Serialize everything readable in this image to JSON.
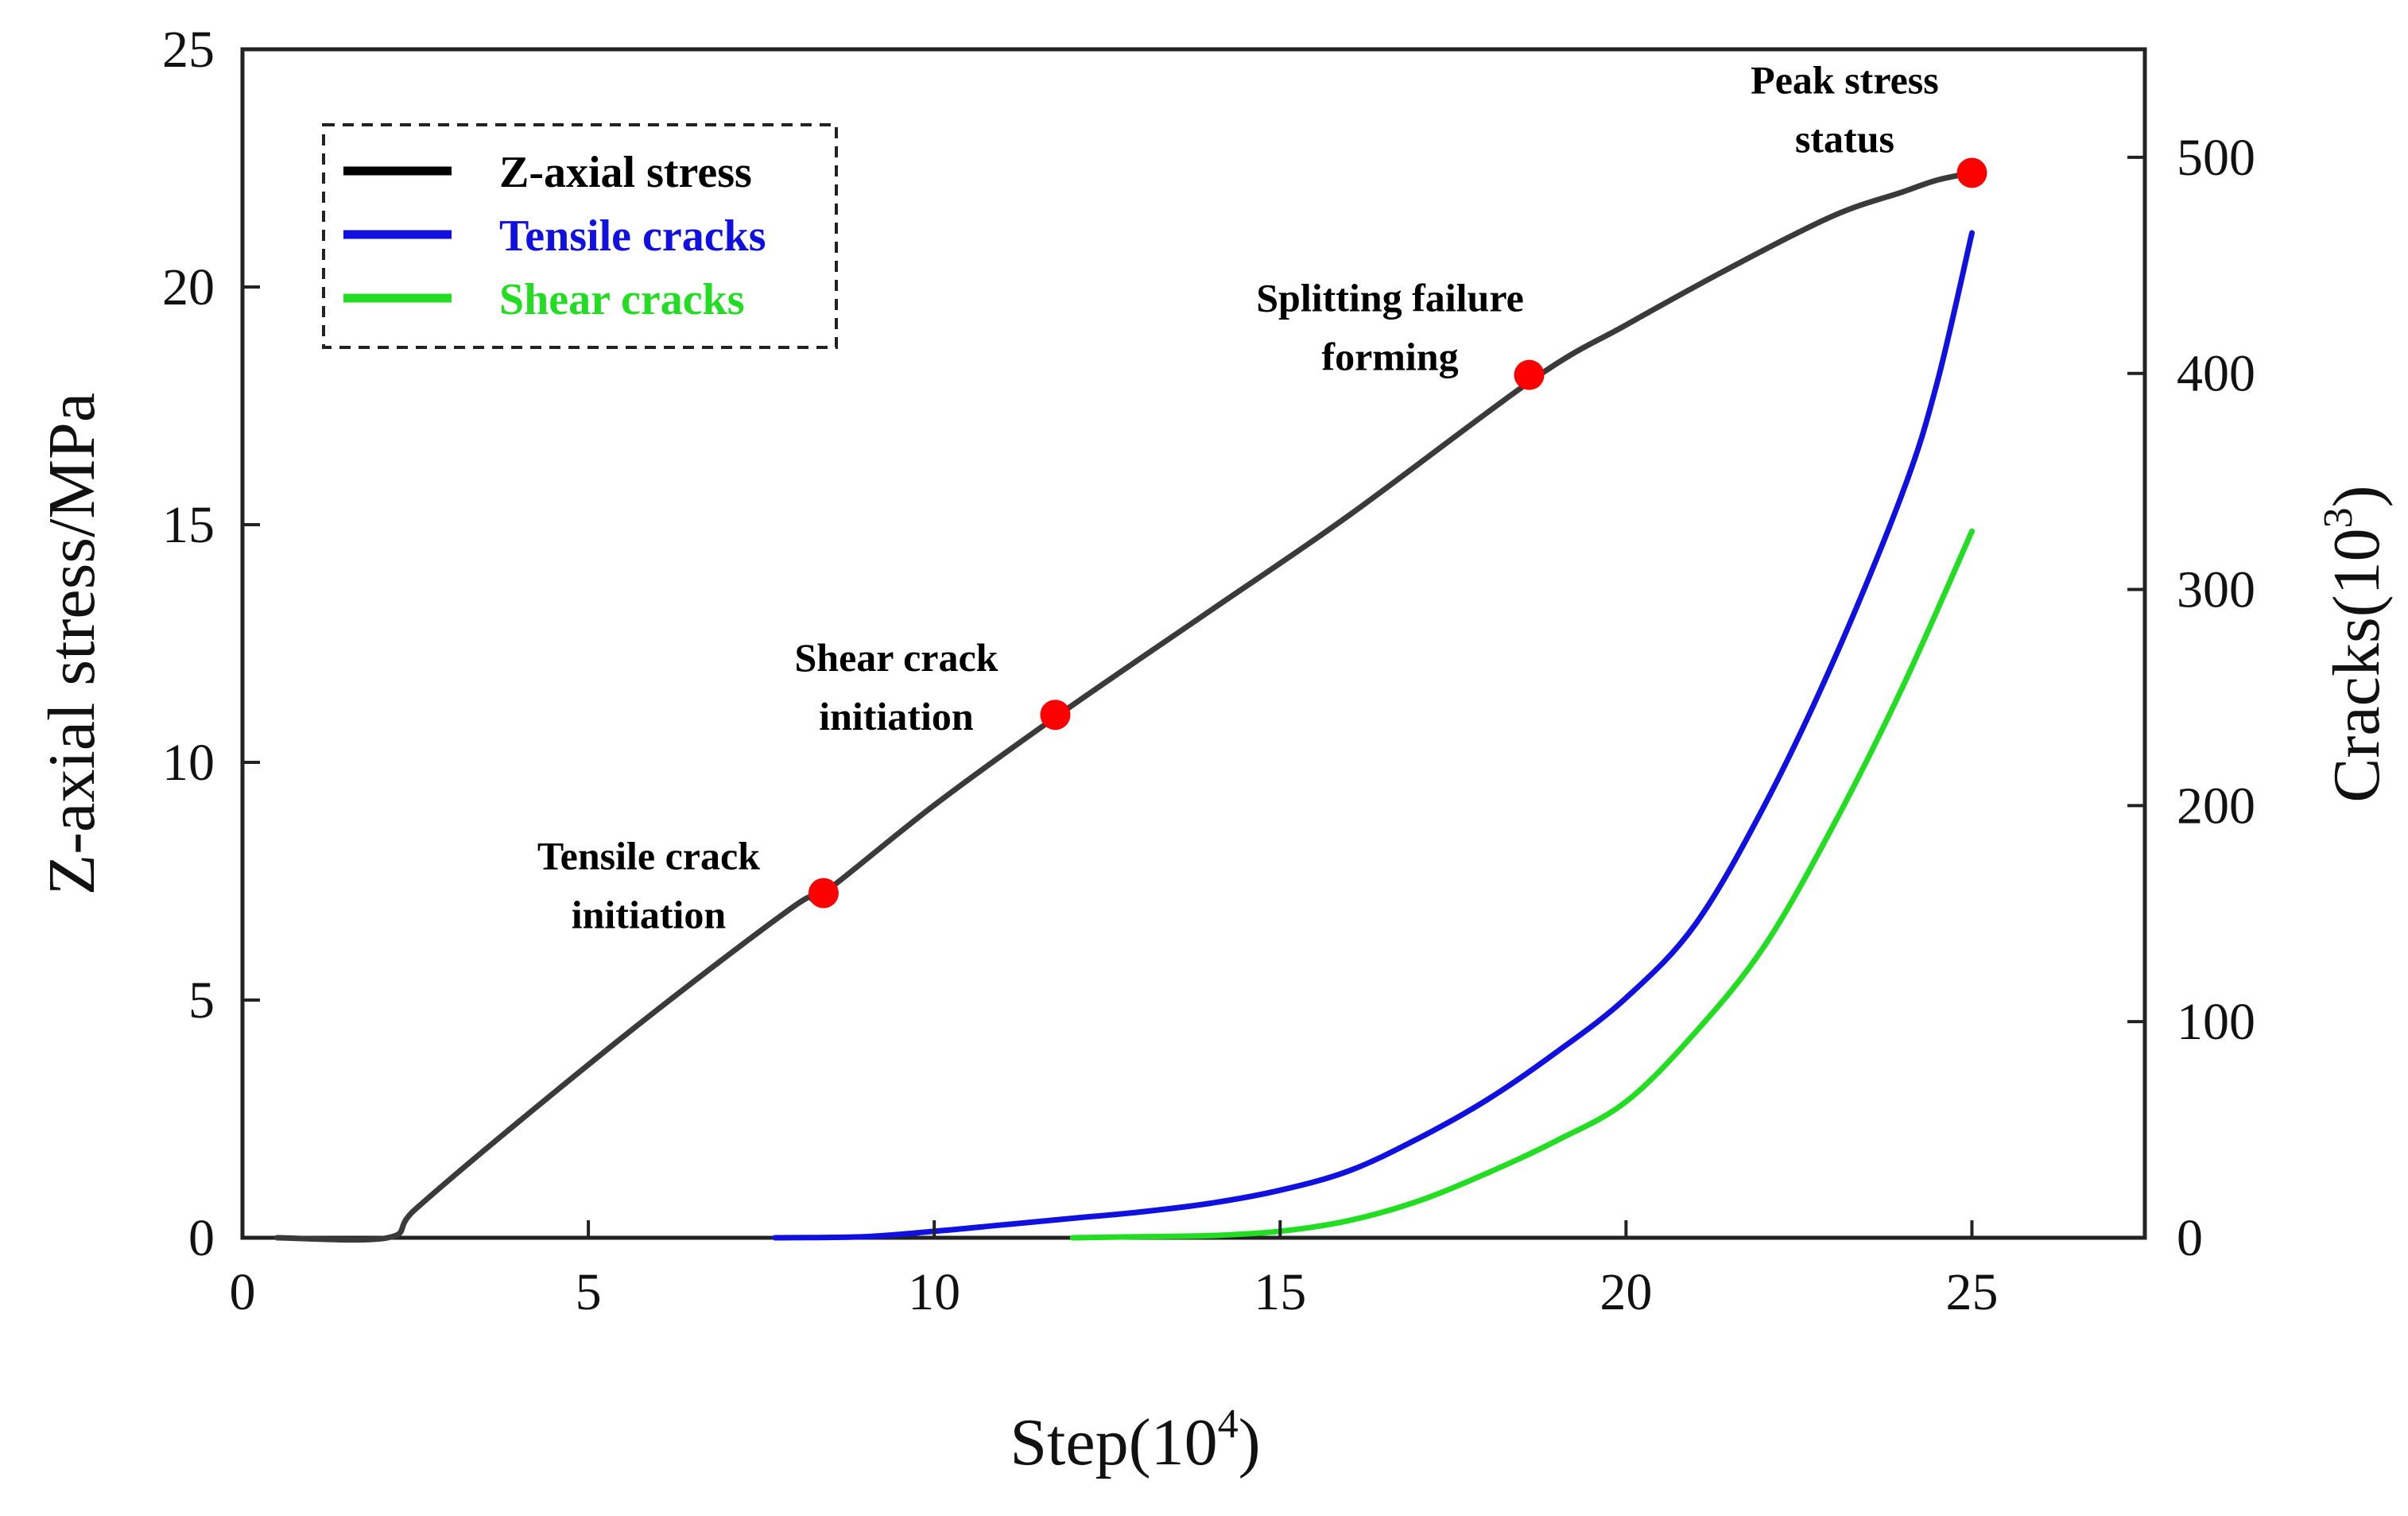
{
  "chart_data": {
    "type": "line",
    "x": {
      "label": "Step(10",
      "label_sup": "4",
      "label_end": ")",
      "lim": [
        0,
        27.5
      ],
      "ticks": [
        0,
        5,
        10,
        15,
        20,
        25
      ],
      "tick_labels": [
        "0",
        "5",
        "10",
        "15",
        "20",
        "25"
      ]
    },
    "y_left": {
      "label": "Z-axial stress/MPa",
      "lim": [
        0,
        25
      ],
      "ticks": [
        0,
        5,
        10,
        15,
        20,
        25
      ],
      "tick_labels": [
        "0",
        "5",
        "10",
        "15",
        "20",
        "25"
      ]
    },
    "y_right": {
      "label": "Cracks(10",
      "label_sup": "3",
      "label_end": ")",
      "lim": [
        0,
        550
      ],
      "ticks": [
        0,
        100,
        200,
        300,
        400,
        500
      ],
      "tick_labels": [
        "0",
        "100",
        "200",
        "300",
        "400",
        "500"
      ]
    },
    "series": [
      {
        "name": "Z-axial stress",
        "axis": "left",
        "color": "#3a3a3a",
        "legend_color": "#000000",
        "points": [
          [
            0.5,
            0
          ],
          [
            2.1,
            0
          ],
          [
            2.5,
            0.6
          ],
          [
            4,
            2.45
          ],
          [
            6,
            4.8
          ],
          [
            8,
            7.0
          ],
          [
            8.4,
            7.25
          ],
          [
            10,
            9.1
          ],
          [
            11.8,
            11.0
          ],
          [
            14,
            13.2
          ],
          [
            16,
            15.2
          ],
          [
            18.7,
            18.1
          ],
          [
            20,
            19.2
          ],
          [
            21.5,
            20.4
          ],
          [
            23,
            21.5
          ],
          [
            24,
            22.0
          ],
          [
            24.5,
            22.25
          ],
          [
            25,
            22.4
          ]
        ]
      },
      {
        "name": "Tensile cracks",
        "axis": "right",
        "color": "#1010e0",
        "legend_color": "#1010e0",
        "points": [
          [
            7.7,
            0
          ],
          [
            9,
            0.5
          ],
          [
            10,
            3
          ],
          [
            11,
            6
          ],
          [
            12,
            9
          ],
          [
            13,
            12
          ],
          [
            14,
            16
          ],
          [
            15,
            22
          ],
          [
            16,
            31
          ],
          [
            17,
            46
          ],
          [
            18,
            64
          ],
          [
            19,
            86
          ],
          [
            20,
            111
          ],
          [
            21,
            145
          ],
          [
            22,
            200
          ],
          [
            23,
            267
          ],
          [
            24,
            345
          ],
          [
            24.5,
            396
          ],
          [
            25,
            465
          ]
        ]
      },
      {
        "name": "Shear cracks",
        "axis": "right",
        "color": "#22dd22",
        "legend_color": "#22dd22",
        "points": [
          [
            12,
            0
          ],
          [
            13,
            0.5
          ],
          [
            14,
            1
          ],
          [
            15,
            3
          ],
          [
            16,
            8
          ],
          [
            17,
            17
          ],
          [
            18,
            30
          ],
          [
            19,
            45
          ],
          [
            20,
            63
          ],
          [
            21,
            95
          ],
          [
            22,
            135
          ],
          [
            23,
            191
          ],
          [
            24,
            255
          ],
          [
            25,
            327
          ]
        ]
      }
    ],
    "annotations": [
      {
        "lines": [
          "Tensile crack",
          "initiation"
        ],
        "x": 8.4,
        "y": 7.25
      },
      {
        "lines": [
          "Shear crack",
          "initiation"
        ],
        "x": 11.75,
        "y": 11.0
      },
      {
        "lines": [
          "Splitting failure",
          "forming"
        ],
        "x": 18.6,
        "y": 18.15
      },
      {
        "lines": [
          "Peak stress",
          "status"
        ],
        "x": 25.0,
        "y": 22.4
      }
    ],
    "marker_color": "#ff0000",
    "legend_position": "top-left",
    "legend": [
      "Z-axial stress",
      "Tensile cracks",
      "Shear cracks"
    ]
  }
}
